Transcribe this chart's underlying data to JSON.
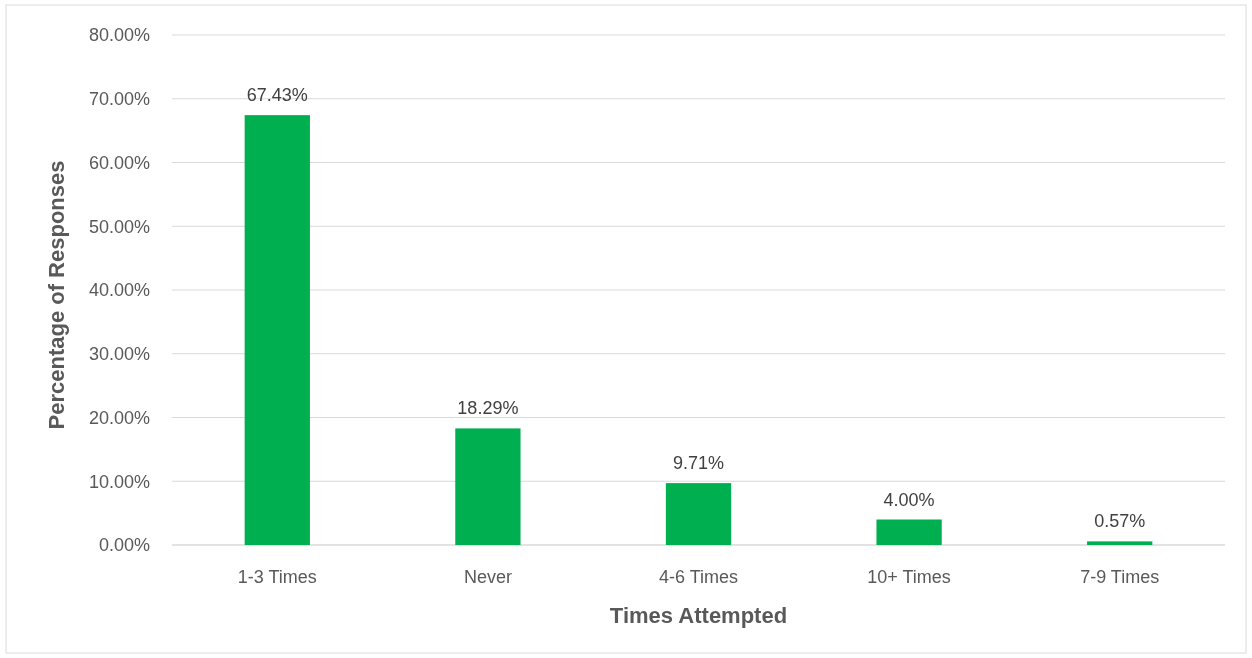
{
  "chart_data": {
    "type": "bar",
    "xlabel": "Times Attempted",
    "ylabel": "Percentage of Responses",
    "categories": [
      "1-3 Times",
      "Never",
      "4-6 Times",
      "10+ Times",
      "7-9 Times"
    ],
    "values": [
      67.43,
      18.29,
      9.71,
      4.0,
      0.57
    ],
    "value_labels": [
      "67.43%",
      "18.29%",
      "9.71%",
      "4.00%",
      "0.57%"
    ],
    "color": "#00b050",
    "ylim": [
      0,
      80
    ],
    "yticks": [
      {
        "value": 0,
        "label": "0.00%"
      },
      {
        "value": 10,
        "label": "10.00%"
      },
      {
        "value": 20,
        "label": "20.00%"
      },
      {
        "value": 30,
        "label": "30.00%"
      },
      {
        "value": 40,
        "label": "40.00%"
      },
      {
        "value": 50,
        "label": "50.00%"
      },
      {
        "value": 60,
        "label": "60.00%"
      },
      {
        "value": 70,
        "label": "70.00%"
      },
      {
        "value": 80,
        "label": "80.00%"
      }
    ],
    "grid": "y"
  }
}
